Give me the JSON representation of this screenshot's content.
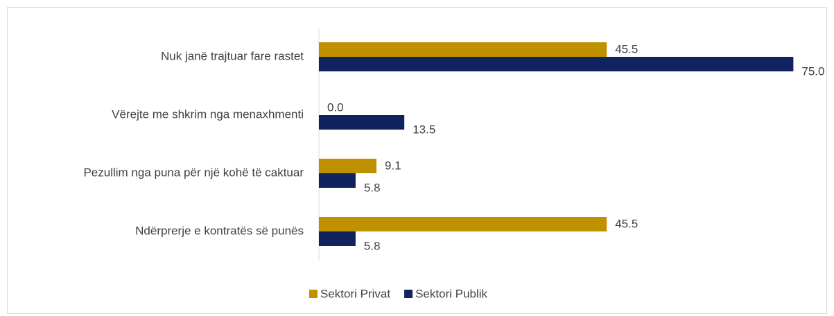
{
  "chart_data": {
    "type": "hbar",
    "categories": [
      "Nuk janë trajtuar fare rastet",
      "Vërejte me shkrim nga menaxhmenti",
      "Pezullim nga puna për një kohë të caktuar",
      "Ndërprerje e kontratës së punës"
    ],
    "series": [
      {
        "name": "Sektori Privat",
        "color": "#bf9000",
        "values": [
          45.5,
          0,
          9.1,
          45.5
        ],
        "value_labels": [
          "45.5",
          "0.0",
          "9.1",
          "45.5"
        ]
      },
      {
        "name": "Sektori Publik",
        "color": "#10235f",
        "values": [
          75,
          13.5,
          5.8,
          5.8
        ],
        "value_labels": [
          "75.0",
          "13.5",
          "5.8",
          "5.8"
        ]
      }
    ],
    "xlim": [
      0,
      80
    ]
  }
}
